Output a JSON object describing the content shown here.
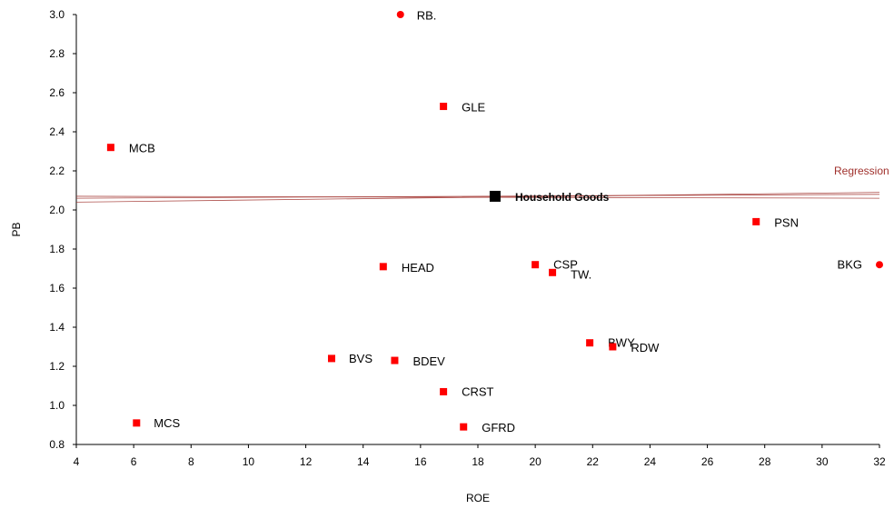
{
  "chart_data": {
    "type": "scatter",
    "xlabel": "ROE",
    "ylabel": "PB",
    "xlim": [
      4,
      32
    ],
    "ylim": [
      0.8,
      3.0
    ],
    "xticks": [
      "4",
      "6",
      "8",
      "10",
      "12",
      "14",
      "16",
      "18",
      "20",
      "22",
      "24",
      "26",
      "28",
      "30",
      "32"
    ],
    "yticks": [
      "0.8",
      "1.0",
      "1.2",
      "1.4",
      "1.6",
      "1.8",
      "2.0",
      "2.2",
      "2.4",
      "2.6",
      "2.8",
      "3.0"
    ],
    "grid": false,
    "colors": {
      "points": "#ff0000",
      "highlight": "#000000",
      "regression": "#a0302c"
    },
    "points": [
      {
        "label": "RB.",
        "x": 15.3,
        "y": 3.0,
        "shape": "circle"
      },
      {
        "label": "GLE",
        "x": 16.8,
        "y": 2.53,
        "shape": "square"
      },
      {
        "label": "MCB",
        "x": 5.2,
        "y": 2.32,
        "shape": "square"
      },
      {
        "label": "PSN",
        "x": 27.7,
        "y": 1.94,
        "shape": "square"
      },
      {
        "label": "BKG",
        "x": 32.0,
        "y": 1.72,
        "shape": "circle"
      },
      {
        "label": "HEAD",
        "x": 14.7,
        "y": 1.71,
        "shape": "square"
      },
      {
        "label": "CSP",
        "x": 20.0,
        "y": 1.72,
        "shape": "square"
      },
      {
        "label": "TW.",
        "x": 20.6,
        "y": 1.68,
        "shape": "square"
      },
      {
        "label": "BWY",
        "x": 21.9,
        "y": 1.32,
        "shape": "square"
      },
      {
        "label": "RDW",
        "x": 22.7,
        "y": 1.3,
        "shape": "square"
      },
      {
        "label": "BVS",
        "x": 12.9,
        "y": 1.24,
        "shape": "square"
      },
      {
        "label": "BDEV",
        "x": 15.1,
        "y": 1.23,
        "shape": "square"
      },
      {
        "label": "CRST",
        "x": 16.8,
        "y": 1.07,
        "shape": "square"
      },
      {
        "label": "MCS",
        "x": 6.1,
        "y": 0.91,
        "shape": "square"
      },
      {
        "label": "GFRD",
        "x": 17.5,
        "y": 0.89,
        "shape": "square"
      }
    ],
    "highlight": {
      "label": "Household Goods",
      "x": 18.6,
      "y": 2.07
    },
    "regression": {
      "label": "Regression",
      "lines": [
        {
          "x": [
            4,
            32
          ],
          "y": [
            2.06,
            2.08
          ]
        },
        {
          "x": [
            4,
            32
          ],
          "y": [
            2.04,
            2.09
          ]
        },
        {
          "x": [
            4,
            32
          ],
          "y": [
            2.07,
            2.06
          ]
        }
      ]
    }
  }
}
